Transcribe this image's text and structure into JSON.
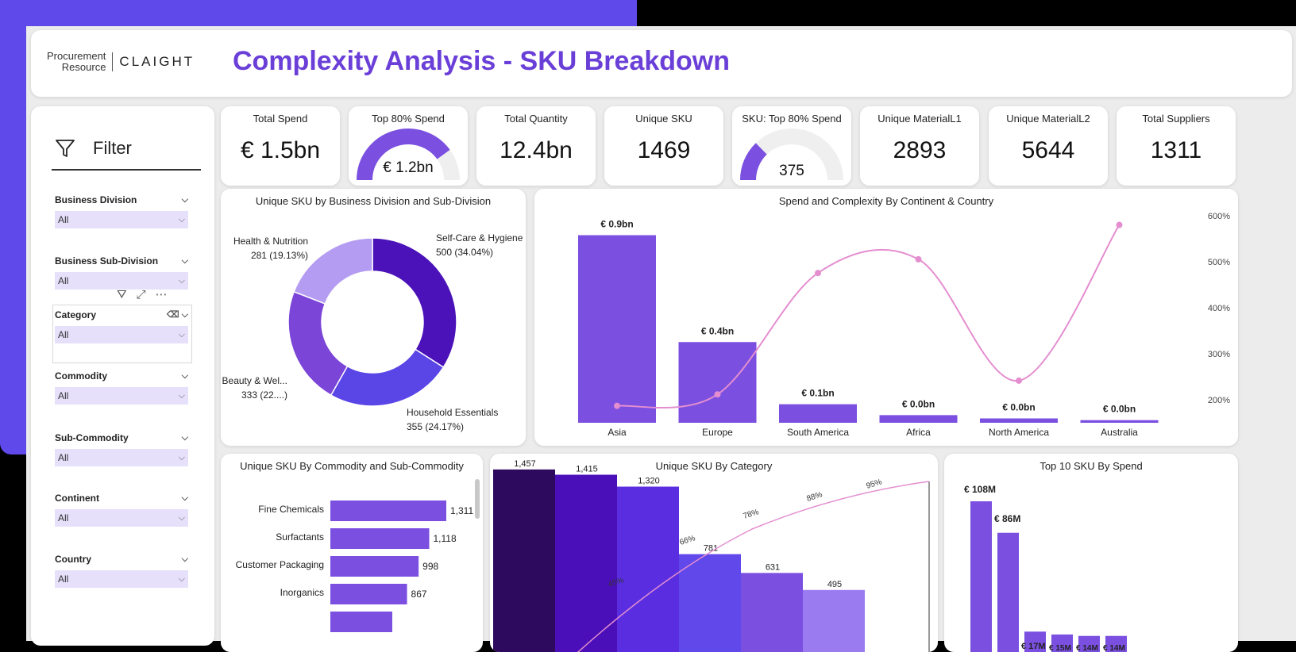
{
  "header": {
    "logo_procurement_line1": "Procurement",
    "logo_procurement_line2": "Resource",
    "logo_claight": "CLAIGHT",
    "title": "Complexity Analysis - SKU Breakdown"
  },
  "filter": {
    "title": "Filter",
    "slicers": [
      {
        "label": "Business Division",
        "value": "All"
      },
      {
        "label": "Business Sub-Division",
        "value": "All"
      },
      {
        "label": "Category",
        "value": "All"
      },
      {
        "label": "Commodity",
        "value": "All"
      },
      {
        "label": "Sub-Commodity",
        "value": "All"
      },
      {
        "label": "Continent",
        "value": "All"
      },
      {
        "label": "Country",
        "value": "All"
      }
    ]
  },
  "kpis": [
    {
      "label": "Total Spend",
      "value": "€ 1.5bn"
    },
    {
      "label": "Top 80% Spend",
      "value": "€ 1.2bn",
      "gauge_fraction": 0.8
    },
    {
      "label": "Total Quantity",
      "value": "12.4bn"
    },
    {
      "label": "Unique SKU",
      "value": "1469"
    },
    {
      "label": "SKU: Top 80% Spend",
      "value": "375",
      "gauge_fraction": 0.255
    },
    {
      "label": "Unique MaterialL1",
      "value": "2893"
    },
    {
      "label": "Unique MaterialL2",
      "value": "5644"
    },
    {
      "label": "Total Suppliers",
      "value": "1311"
    }
  ],
  "colors": {
    "accent": "#6a3fd8",
    "bar": "#7b4fe0",
    "line": "#e48ed0",
    "slicer_bg": "#e6e0fb"
  },
  "chart_data": [
    {
      "type": "pie",
      "title": "Unique SKU by Business Division and Sub-Division",
      "slices": [
        {
          "label": "Self-Care & Hygiene",
          "value": 500,
          "display": "500 (34.04%)",
          "color": "#4a12b8"
        },
        {
          "label": "Household Essentials",
          "value": 355,
          "display": "355 (24.17%)",
          "color": "#5a45e6"
        },
        {
          "label": "Beauty & Wel...",
          "value": 333,
          "display": "333 (22....)",
          "color": "#7b45d8"
        },
        {
          "label": "Health & Nutrition",
          "value": 281,
          "display": "281 (19.13%)",
          "color": "#b49cf2"
        }
      ]
    },
    {
      "type": "bar",
      "title": "Spend and Complexity By Continent & Country",
      "categories": [
        "Asia",
        "Europe",
        "South America",
        "Africa",
        "North America",
        "Australia"
      ],
      "values": [
        0.9,
        0.4,
        0.1,
        0.0,
        0.0,
        0.0
      ],
      "bar_heights": [
        0.86,
        0.37,
        0.085,
        0.035,
        0.02,
        0.012
      ],
      "data_labels": [
        "€ 0.9bn",
        "€ 0.4bn",
        "€ 0.1bn",
        "€ 0.0bn",
        "€ 0.0bn",
        "€ 0.0bn"
      ],
      "line_values": [
        185,
        210,
        475,
        505,
        240,
        580
      ],
      "y2_ticks": [
        "200%",
        "300%",
        "400%",
        "500%",
        "600%"
      ],
      "y2lim": [
        200,
        600
      ]
    },
    {
      "type": "bar",
      "title": "Unique SKU By Commodity and Sub-Commodity",
      "categories": [
        "Fine Chemicals",
        "Surfactants",
        "Customer Packaging",
        "Inorganics"
      ],
      "values": [
        1311,
        1118,
        998,
        867
      ]
    },
    {
      "type": "bar",
      "title": "Unique SKU By Category",
      "values": [
        1457,
        1415,
        1320,
        781,
        631,
        495
      ],
      "colors": [
        "#2e0a5e",
        "#4a0fb8",
        "#5a2ee0",
        "#6148ea",
        "#7b4fe0",
        "#9b7cf0"
      ],
      "cumulative_labels": [
        "45%",
        "66%",
        "78%",
        "88%",
        "95%"
      ]
    },
    {
      "type": "bar",
      "title": "Top 10 SKU By Spend",
      "data_labels": [
        "€ 108M",
        "€ 86M",
        "€ 17M",
        "€ 15M",
        "€ 14M",
        "€ 14M"
      ],
      "values": [
        108,
        86,
        17,
        15,
        14,
        14
      ]
    }
  ]
}
